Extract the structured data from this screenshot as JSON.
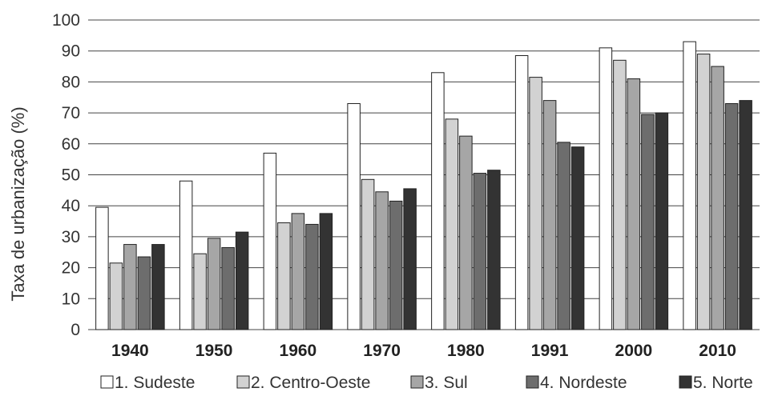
{
  "chart_data": {
    "type": "bar",
    "ylabel": "Taxa de urbanização (%)",
    "ylim": [
      0,
      100
    ],
    "yticks": [
      "0",
      "10",
      "20",
      "30",
      "40",
      "50",
      "60",
      "70",
      "80",
      "90",
      "100"
    ],
    "grid": true,
    "legend_position": "bottom",
    "categories": [
      "1940",
      "1950",
      "1960",
      "1970",
      "1980",
      "1991",
      "2000",
      "2010"
    ],
    "series": [
      {
        "name": "1. Sudeste",
        "color": "#ffffff",
        "values": [
          39.5,
          48,
          57,
          73,
          83,
          88.5,
          91,
          93
        ]
      },
      {
        "name": "2. Centro-Oeste",
        "color": "#d2d2d2",
        "values": [
          21.5,
          24.5,
          34.5,
          48.5,
          68,
          81.5,
          87,
          89
        ]
      },
      {
        "name": "3. Sul",
        "color": "#a6a6a6",
        "values": [
          27.5,
          29.5,
          37.5,
          44.5,
          62.5,
          74,
          81,
          85
        ]
      },
      {
        "name": "4. Nordeste",
        "color": "#6d6d6d",
        "values": [
          23.5,
          26.5,
          34,
          41.5,
          50.5,
          60.5,
          69.5,
          73
        ]
      },
      {
        "name": "5. Norte",
        "color": "#333333",
        "values": [
          27.5,
          31.5,
          37.5,
          45.5,
          51.5,
          59,
          70,
          74
        ]
      }
    ]
  }
}
